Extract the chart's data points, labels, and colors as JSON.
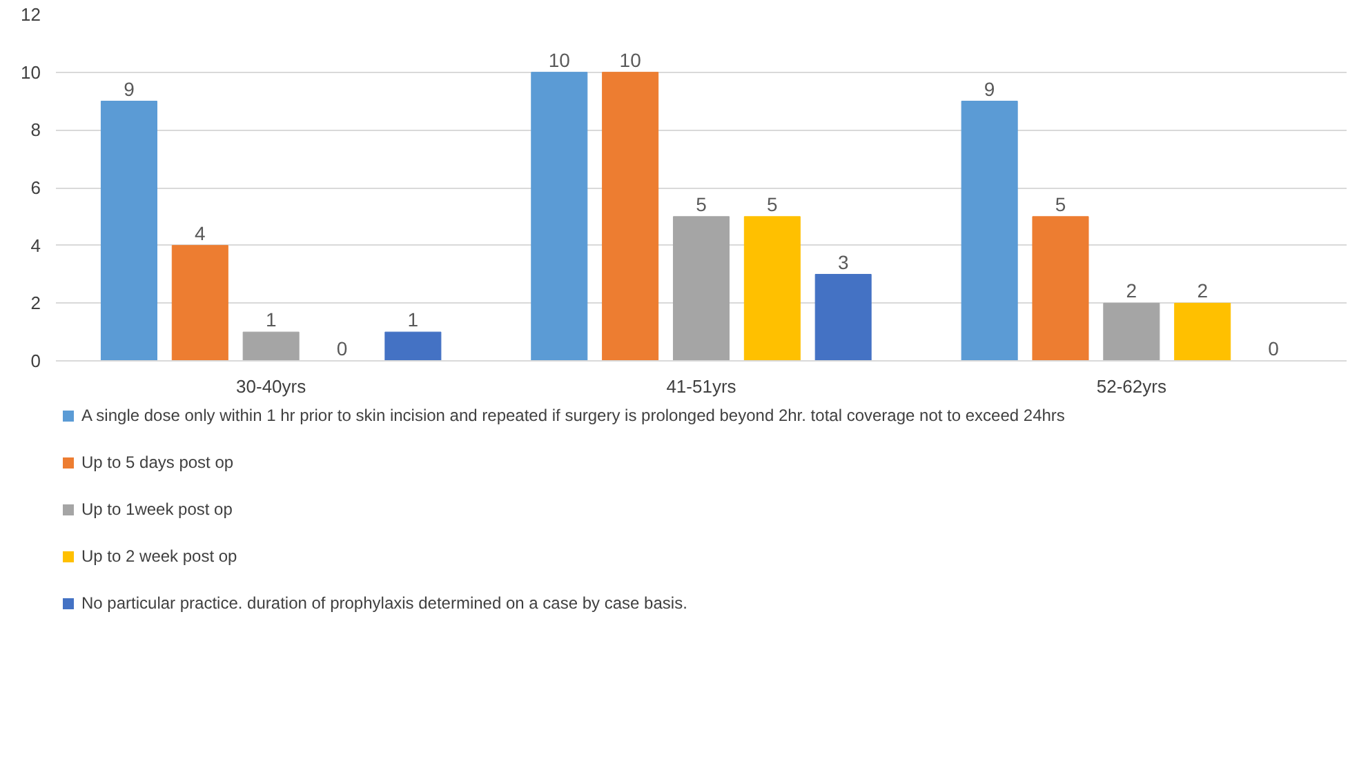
{
  "chart_data": {
    "type": "bar",
    "categories": [
      "30-40yrs",
      "41-51yrs",
      "52-62yrs"
    ],
    "series": [
      {
        "name": "A single dose only within 1 hr prior to skin incision and repeated if surgery is prolonged beyond 2hr. total coverage not to exceed 24hrs",
        "color": "#5b9bd5",
        "values": [
          9,
          10,
          9
        ]
      },
      {
        "name": "Up to 5 days post op",
        "color": "#ed7d31",
        "values": [
          4,
          10,
          5
        ]
      },
      {
        "name": "Up to 1week post op",
        "color": "#a5a5a5",
        "values": [
          1,
          5,
          2
        ]
      },
      {
        "name": "Up to 2 week post op",
        "color": "#ffc000",
        "values": [
          0,
          5,
          2
        ]
      },
      {
        "name": "No particular practice. duration of prophylaxis determined on a case by case basis.",
        "color": "#4472c4",
        "values": [
          1,
          3,
          0
        ]
      }
    ],
    "ylim": [
      0,
      12
    ],
    "yticks": [
      0,
      2,
      4,
      6,
      8,
      10,
      12
    ],
    "grid": "y",
    "legend": "bottom",
    "data_labels": true
  }
}
